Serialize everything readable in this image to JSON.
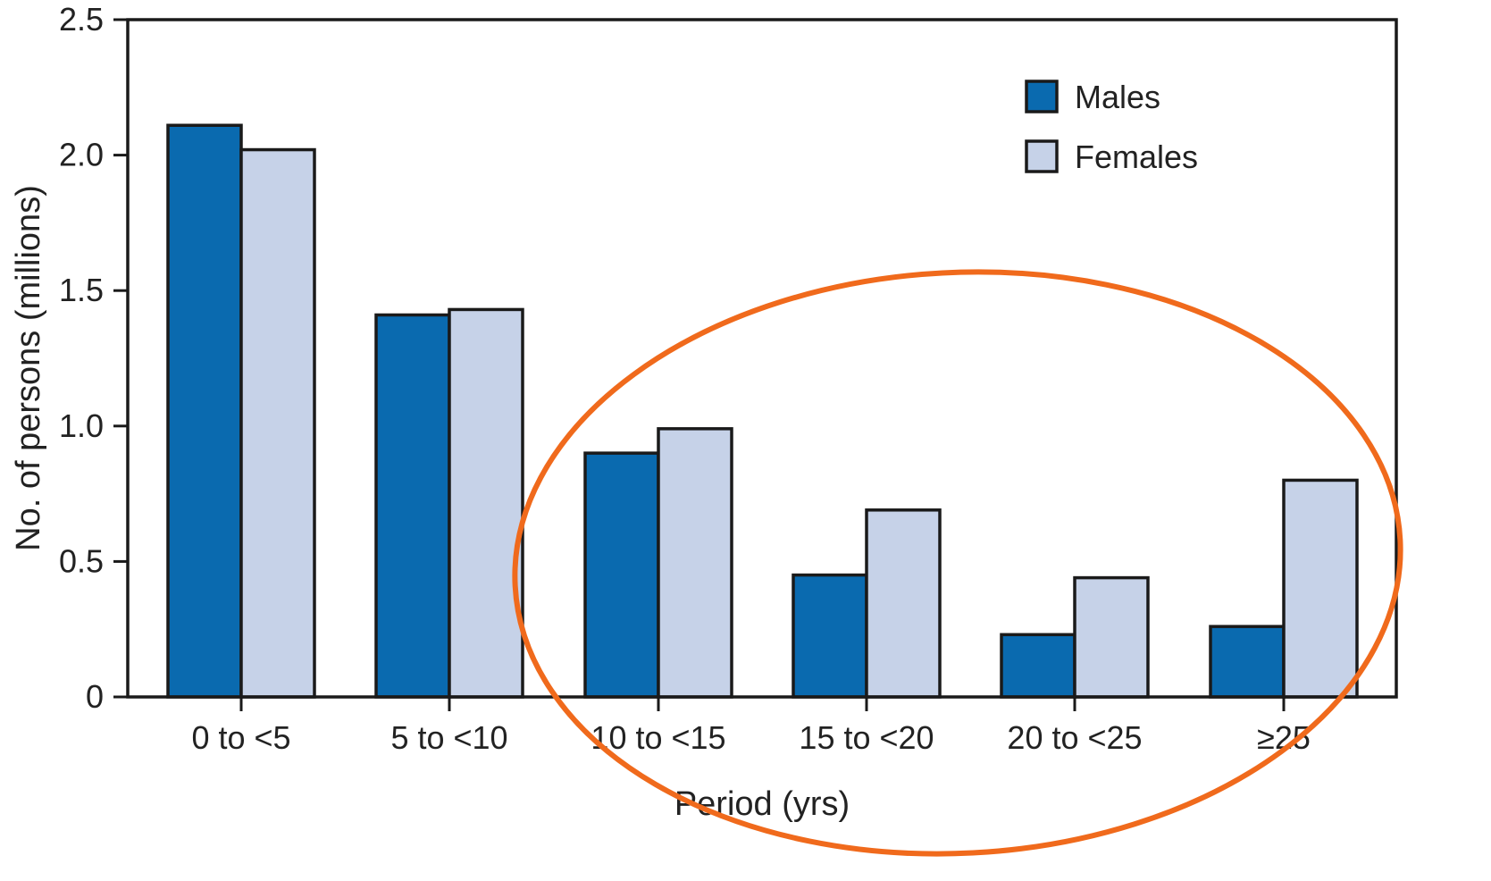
{
  "chart_data": {
    "type": "bar",
    "title": "",
    "xlabel": "Period (yrs)",
    "ylabel": "No. of persons (millions)",
    "categories": [
      "0 to <5",
      "5 to <10",
      "10 to <15",
      "15 to <20",
      "20 to <25",
      "≥25"
    ],
    "series": [
      {
        "name": "Males",
        "values": [
          2.11,
          1.41,
          0.9,
          0.45,
          0.23,
          0.26
        ],
        "color": "#0a6aaf"
      },
      {
        "name": "Females",
        "values": [
          2.02,
          1.43,
          0.99,
          0.69,
          0.44,
          0.8
        ],
        "color": "#c6d2e8"
      }
    ],
    "ylim": [
      0,
      2.5
    ],
    "yticks": [
      0,
      0.5,
      1.0,
      1.5,
      2.0,
      2.5
    ],
    "ytick_labels": [
      "0",
      "0.5",
      "1.0",
      "1.5",
      "2.0",
      "2.5"
    ],
    "grid": false,
    "legend_position": "top-right",
    "annotation": {
      "shape": "ellipse",
      "color": "#f06a1c",
      "highlights": [
        "10 to <15",
        "15 to <20",
        "20 to <25",
        "≥25"
      ]
    }
  }
}
